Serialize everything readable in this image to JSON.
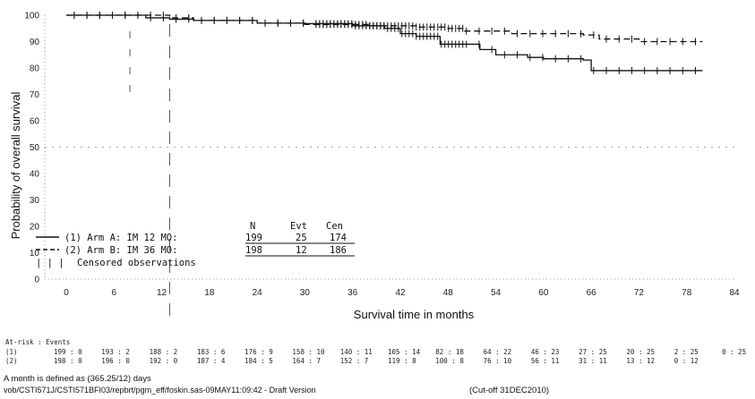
{
  "chart_data": {
    "type": "line",
    "subtype": "kaplan-meier",
    "xlabel": "Survival time in months",
    "ylabel": "Probability of overall survival",
    "xlim": [
      0,
      84
    ],
    "ylim": [
      0,
      100
    ],
    "xticks": [
      "0",
      "6",
      "12",
      "18",
      "24",
      "30",
      "36",
      "42",
      "48",
      "54",
      "60",
      "66",
      "72",
      "78",
      "84"
    ],
    "yticks": [
      "0",
      "10",
      "20",
      "30",
      "40",
      "50",
      "60",
      "70",
      "80",
      "90",
      "100"
    ],
    "series": [
      {
        "name": "(1) Arm A: IM 12 MO:",
        "style": "solid",
        "points": [
          [
            0,
            100
          ],
          [
            6,
            100
          ],
          [
            10,
            99
          ],
          [
            13,
            98.5
          ],
          [
            16,
            98
          ],
          [
            24,
            97
          ],
          [
            30,
            96.8
          ],
          [
            36,
            96
          ],
          [
            40,
            95
          ],
          [
            42,
            93
          ],
          [
            44,
            92
          ],
          [
            47,
            89
          ],
          [
            52,
            87
          ],
          [
            54,
            85
          ],
          [
            58,
            84
          ],
          [
            60,
            83.5
          ],
          [
            65,
            83
          ],
          [
            66,
            79
          ],
          [
            72,
            79
          ],
          [
            80,
            79
          ]
        ]
      },
      {
        "name": "(2) Arm B: IM 36 MO:",
        "style": "dashed",
        "points": [
          [
            0,
            100
          ],
          [
            8,
            100
          ],
          [
            13,
            99
          ],
          [
            16,
            98
          ],
          [
            24,
            97
          ],
          [
            30,
            96.5
          ],
          [
            38,
            96
          ],
          [
            44,
            95.5
          ],
          [
            48,
            95
          ],
          [
            50,
            94
          ],
          [
            56,
            93
          ],
          [
            60,
            93
          ],
          [
            65,
            92.5
          ],
          [
            67,
            91
          ],
          [
            72,
            90
          ],
          [
            80,
            90
          ]
        ]
      }
    ],
    "legend": {
      "headers": [
        "N",
        "Evt",
        "Cen"
      ],
      "rows": [
        {
          "label": "(1) Arm A: IM 12 MO:",
          "n": "199",
          "evt": "25",
          "cen": "174"
        },
        {
          "label": "(2) Arm B: IM 36 MO:",
          "n": "198",
          "evt": "12",
          "cen": "186"
        }
      ],
      "censored_label": "Censored observations"
    }
  },
  "risk_table": {
    "title": "At-risk : Events",
    "rows": [
      {
        "label": "(1)",
        "cells": [
          "199 : 0",
          "193 : 2",
          "188 : 2",
          "183 : 6",
          "176 : 9",
          "158 : 10",
          "140 : 11",
          "105 : 14",
          "82 : 18",
          "64 : 22",
          "46 : 23",
          "27 : 25",
          "20 : 25",
          "2 : 25",
          "0 : 25"
        ]
      },
      {
        "label": "(2)",
        "cells": [
          "198 : 0",
          "196 : 0",
          "192 : 0",
          "187 : 4",
          "184 : 5",
          "164 : 7",
          "152 : 7",
          "119 : 8",
          "100 : 8",
          "76 : 10",
          "56 : 11",
          "31 : 11",
          "13 : 12",
          "0 : 12",
          ""
        ]
      }
    ]
  },
  "footer": {
    "note": "A month is defined as (365.25/12) days",
    "path": "vob/CSTI571J/CSTI571BFI03/repbrt/pgm_eff/foskin.sas-09MAY11:09:42 - Draft Version",
    "cutoff": "(Cut-off 31DEC2010)"
  }
}
